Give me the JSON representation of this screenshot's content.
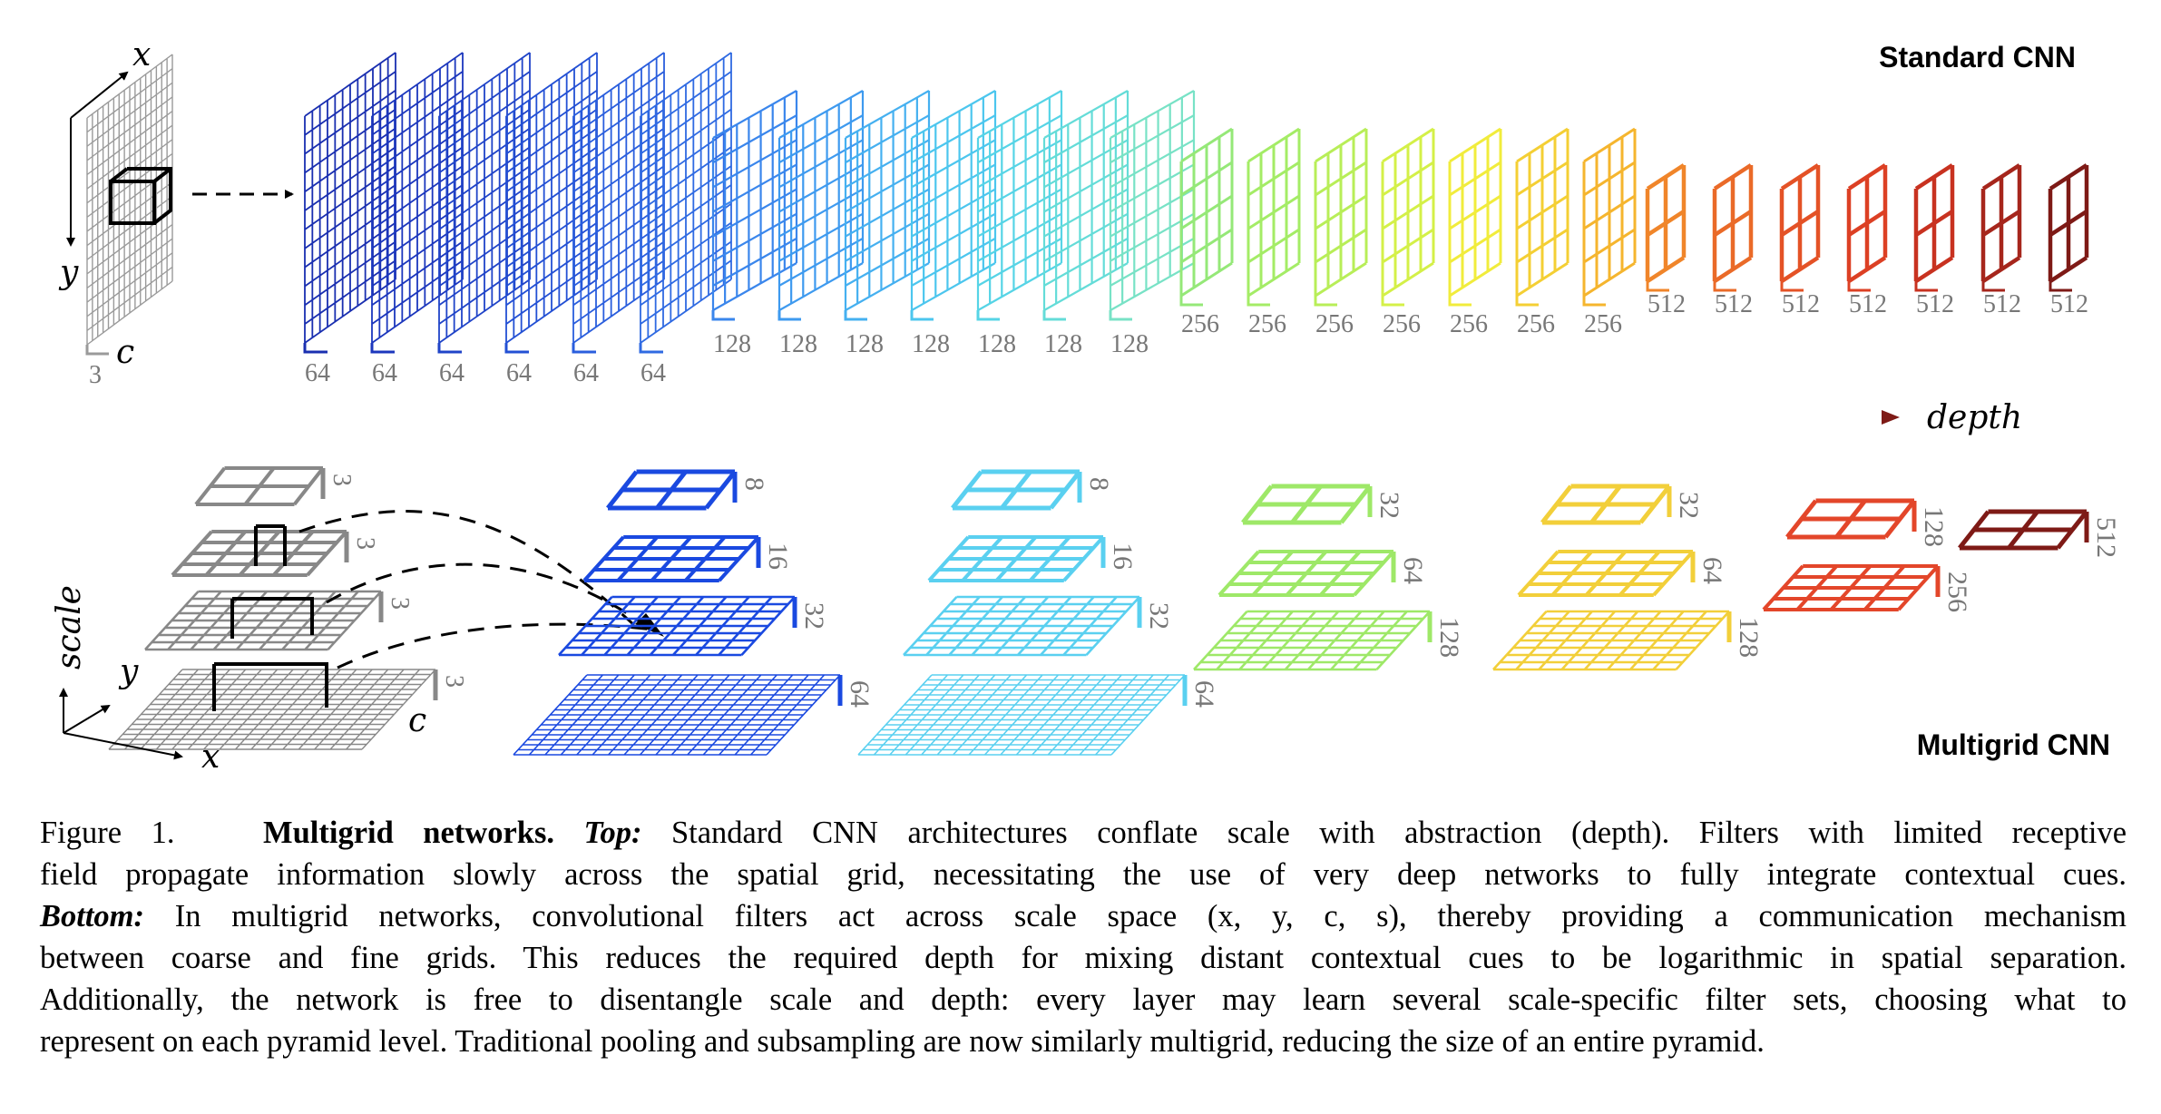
{
  "labels": {
    "standard_title": "Standard CNN",
    "multigrid_title": "Multigrid CNN",
    "depth_axis": "depth",
    "scale_axis": "scale",
    "axis_x": "x",
    "axis_y": "y",
    "axis_c": "c"
  },
  "standard_layers": {
    "input_channels": "3",
    "channels": [
      "64",
      "64",
      "64",
      "64",
      "64",
      "64",
      "128",
      "128",
      "128",
      "128",
      "128",
      "128",
      "128",
      "256",
      "256",
      "256",
      "256",
      "256",
      "256",
      "256",
      "512",
      "512",
      "512",
      "512",
      "512",
      "512",
      "512"
    ],
    "colors": [
      "#1a2fb0",
      "#1c37bd",
      "#2044c8",
      "#2350d4",
      "#2a5edd",
      "#2f6ae2",
      "#3a86ec",
      "#3e9aef",
      "#45b0f0",
      "#4cc6ee",
      "#56d4e6",
      "#64dcd8",
      "#78e2c6",
      "#95e878",
      "#a4ec66",
      "#b8ee58",
      "#d4f048",
      "#f1ec3c",
      "#f4cf34",
      "#f5b52e",
      "#f0852a",
      "#ea6a28",
      "#e45226",
      "#dc4024",
      "#c83220",
      "#a6261c",
      "#7e1a16"
    ]
  },
  "multigrid_columns": [
    {
      "color": "#1a49e0",
      "levels": [
        "8",
        "16",
        "32",
        "64"
      ]
    },
    {
      "color": "#5ad0f0",
      "levels": [
        "8",
        "16",
        "32",
        "64"
      ]
    },
    {
      "color": "#9ee868",
      "levels": [
        "32",
        "64",
        "128"
      ]
    },
    {
      "color": "#f2cf3a",
      "levels": [
        "32",
        "64",
        "128"
      ]
    },
    {
      "color": "#e3462a",
      "levels": [
        "128",
        "256"
      ]
    },
    {
      "color": "#7e1a16",
      "levels": [
        "512"
      ]
    }
  ],
  "multigrid_input": {
    "color": "#888888",
    "levels": [
      "3",
      "3",
      "3",
      "3"
    ]
  },
  "caption": {
    "figure_label": "Figure 1.",
    "title": "Multigrid networks.",
    "top_label": "Top:",
    "bottom_label": "Bottom:",
    "line1_text": "Standard CNN architectures conflate scale with abstraction (depth). Filters with limited receptive",
    "line2": "field propagate information slowly across the spatial grid, necessitating the use of very deep networks to fully integrate contextual cues.",
    "line3_text": "In multigrid networks, convolutional filters act across scale space (x, y, c, s), thereby providing a communication mechanism",
    "line4": "between coarse and fine grids. This reduces the required depth for mixing distant contextual cues to be logarithmic in spatial separation.",
    "line5": "Additionally, the network is free to disentangle scale and depth: every layer may learn several scale-specific filter sets, choosing what to",
    "line6": "represent on each pyramid level. Traditional pooling and subsampling are now similarly multigrid, reducing the size of an entire pyramid."
  }
}
